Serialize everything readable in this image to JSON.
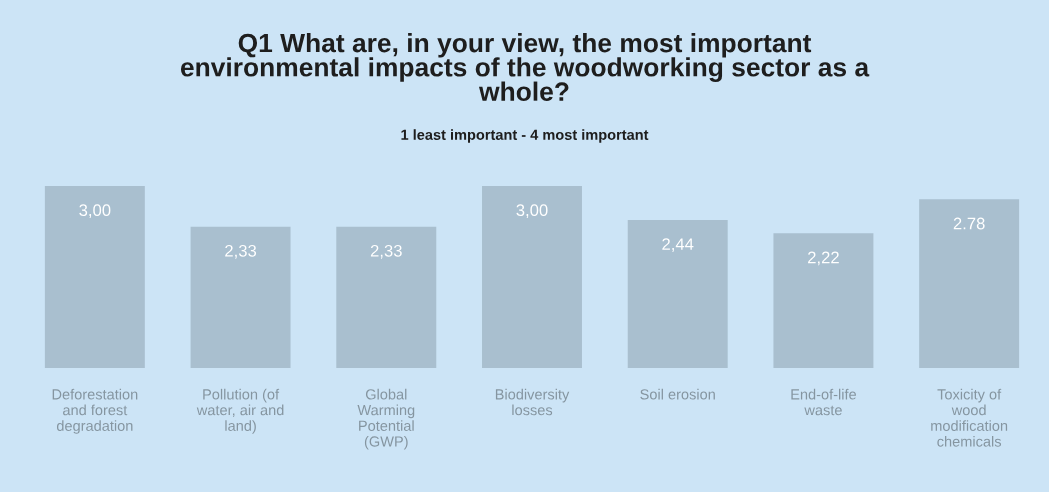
{
  "chart_data": {
    "type": "bar",
    "title": "Q1 What are, in your view, the most important environmental impacts of the woodworking sector as a whole?",
    "subtitle": "1 least important - 4 most important",
    "categories": [
      "Deforestation and forest degradation",
      "Pollution (of water, air and land)",
      "Global Warming Potential (GWP)",
      "Biodiversity losses",
      "Soil erosion",
      "End-of-life waste",
      "Toxicity of wood modification chemicals"
    ],
    "values": [
      3.0,
      2.33,
      2.33,
      3.0,
      2.44,
      2.22,
      2.78
    ],
    "value_labels": [
      "3,00",
      "2,33",
      "2,33",
      "3,00",
      "2,44",
      "2,22",
      "2.78"
    ],
    "color": "#a9bfcf",
    "tick_labels": "x"
  }
}
